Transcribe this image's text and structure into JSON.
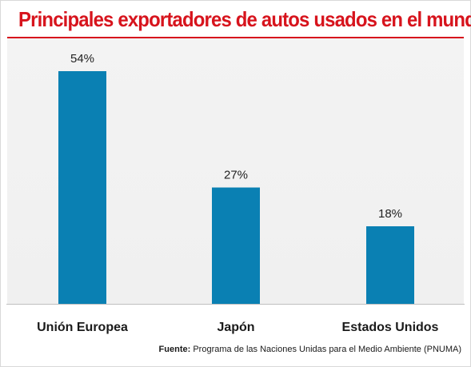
{
  "chart_data": {
    "type": "bar",
    "title": "Principales exportadores de autos usados en el mundo",
    "categories": [
      "Unión Europea",
      "Japón",
      "Estados Unidos"
    ],
    "values": [
      54,
      27,
      18
    ],
    "value_labels": [
      "54%",
      "27%",
      "18%"
    ],
    "unit": "%",
    "xlabel": "",
    "ylabel": "",
    "ylim": [
      0,
      60
    ],
    "grid": false,
    "legend": "none"
  },
  "source": {
    "label": "Fuente:",
    "text": "Programa de las Naciones Unidas para el Medio Ambiente (PNUMA)"
  },
  "colors": {
    "title": "#d7141d",
    "bar": "#0a80b3",
    "background": "#f2f2f2"
  }
}
